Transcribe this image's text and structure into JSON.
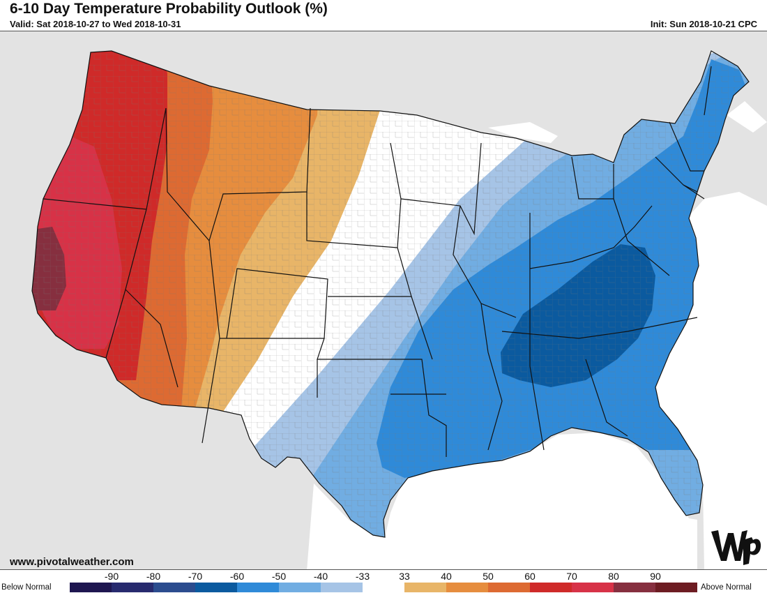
{
  "header": {
    "title": "6-10 Day Temperature Probability Outlook (%)",
    "valid": "Valid: Sat 2018-10-27 to Wed 2018-10-31",
    "init": "Init: Sun 2018-10-21 CPC"
  },
  "map": {
    "region": "Contiguous United States",
    "land_color": "#e3e3e3",
    "water_color": "#ffffff",
    "watermark_logo": "wp"
  },
  "footer": {
    "credit": "www.pivotalweather.com"
  },
  "legend": {
    "below_label": "Below Normal",
    "above_label": "Above Normal",
    "ticks": [
      "-90",
      "-80",
      "-70",
      "-60",
      "-50",
      "-40",
      "-33",
      "33",
      "40",
      "50",
      "60",
      "70",
      "80",
      "90"
    ],
    "colors": [
      "#1e1650",
      "#272a6e",
      "#2b4c8e",
      "#0b5a9f",
      "#2f8ad8",
      "#71ade2",
      "#a6c4e6",
      "#ffffff",
      "#e8b568",
      "#e68d3e",
      "#dd6a32",
      "#cf2a29",
      "#d73247",
      "#862f3f",
      "#6d1c22"
    ]
  }
}
